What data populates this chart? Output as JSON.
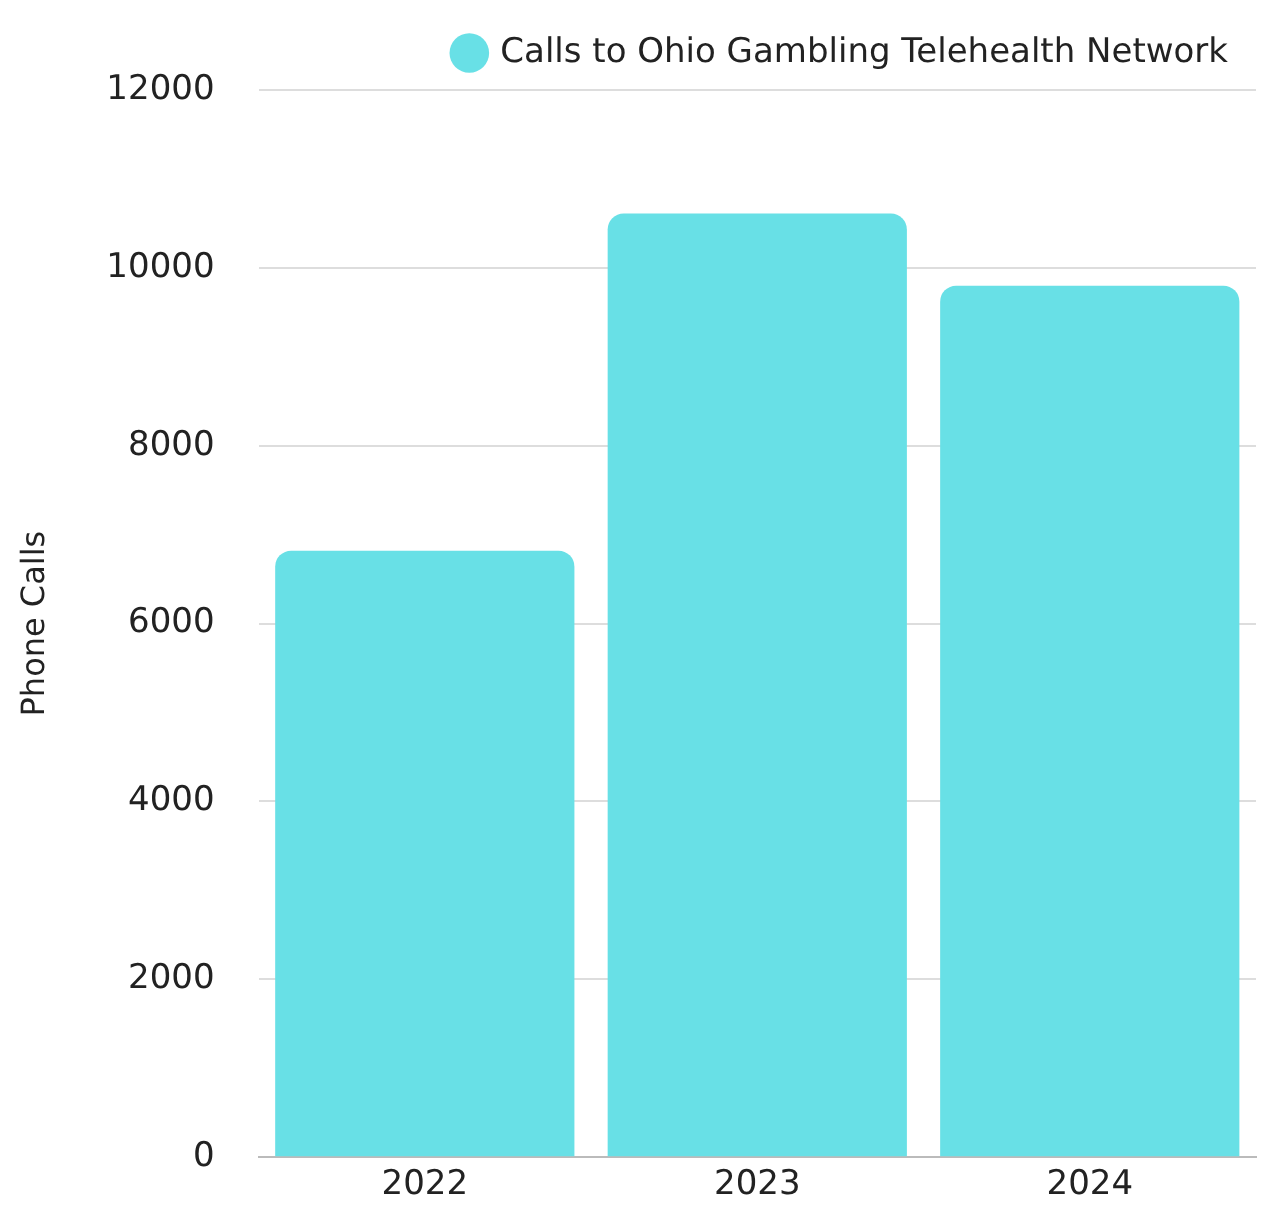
{
  "chart_data": {
    "type": "bar",
    "ylabel": "Phone Calls",
    "categories": [
      "2022",
      "2023",
      "2024"
    ],
    "series": [
      {
        "name": "Calls to Ohio Gambling Telehealth Network",
        "color": "#68e0e6",
        "values": [
          6820,
          10610,
          9800
        ]
      }
    ],
    "ylim": [
      0,
      12000
    ],
    "yticks": [
      0,
      2000,
      4000,
      6000,
      8000,
      10000,
      12000
    ],
    "grid": "y",
    "legend": "top right"
  }
}
